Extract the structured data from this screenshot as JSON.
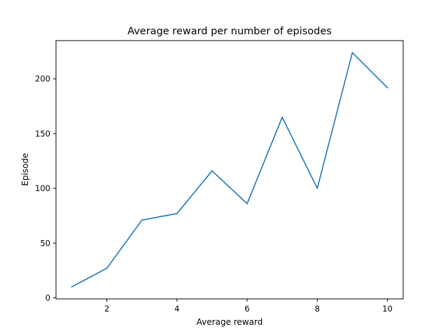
{
  "chart_data": {
    "type": "line",
    "title": "Average reward per number of episodes",
    "xlabel": "Average reward",
    "ylabel": "Episode",
    "x": [
      1,
      2,
      3,
      4,
      5,
      6,
      7,
      8,
      9,
      10
    ],
    "series": [
      {
        "values": [
          10,
          27,
          71,
          77,
          116,
          86,
          165,
          100,
          224,
          192
        ],
        "color": "#1f77b4"
      }
    ],
    "xlim": [
      0.55,
      10.45
    ],
    "ylim": [
      -1,
      235
    ],
    "x_ticks": [
      2,
      4,
      6,
      8,
      10
    ],
    "y_ticks": [
      0,
      50,
      100,
      150,
      200
    ],
    "grid": false,
    "legend": "none"
  }
}
